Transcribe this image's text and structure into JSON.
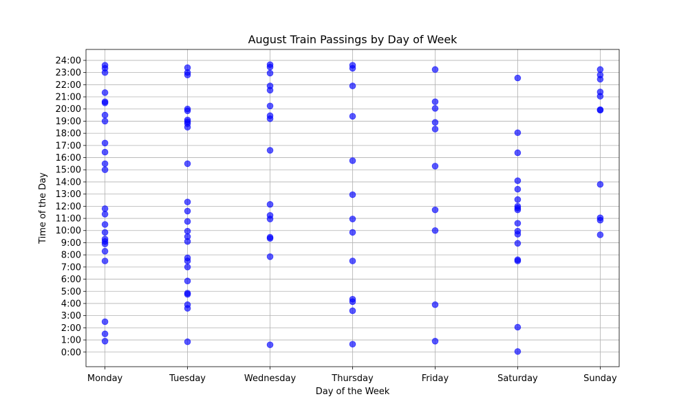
{
  "chart_data": {
    "type": "scatter",
    "title": "August Train Passings by Day of Week",
    "xlabel": "Day of the Week",
    "ylabel": "Time of the Day",
    "categories": [
      "Monday",
      "Tuesday",
      "Wednesday",
      "Thursday",
      "Friday",
      "Saturday",
      "Sunday"
    ],
    "yticks": [
      "0:00",
      "1:00",
      "2:00",
      "3:00",
      "4:00",
      "5:00",
      "6:00",
      "7:00",
      "8:00",
      "9:00",
      "10:00",
      "11:00",
      "12:00",
      "13:00",
      "14:00",
      "15:00",
      "16:00",
      "17:00",
      "18:00",
      "19:00",
      "20:00",
      "21:00",
      "22:00",
      "23:00",
      "24:00"
    ],
    "ylim": [
      -1.2,
      24.9
    ],
    "grid": true,
    "marker_color": "#0000ff",
    "marker_alpha": 0.65,
    "series": [
      {
        "points": [
          {
            "x": "Monday",
            "y": 23.6
          },
          {
            "x": "Monday",
            "y": 23.35
          },
          {
            "x": "Monday",
            "y": 23.0
          },
          {
            "x": "Monday",
            "y": 21.35
          },
          {
            "x": "Monday",
            "y": 20.6
          },
          {
            "x": "Monday",
            "y": 20.5
          },
          {
            "x": "Monday",
            "y": 19.5
          },
          {
            "x": "Monday",
            "y": 19.0
          },
          {
            "x": "Monday",
            "y": 17.2
          },
          {
            "x": "Monday",
            "y": 16.45
          },
          {
            "x": "Monday",
            "y": 15.5
          },
          {
            "x": "Monday",
            "y": 15.0
          },
          {
            "x": "Monday",
            "y": 11.8
          },
          {
            "x": "Monday",
            "y": 11.35
          },
          {
            "x": "Monday",
            "y": 10.5
          },
          {
            "x": "Monday",
            "y": 9.85
          },
          {
            "x": "Monday",
            "y": 9.3
          },
          {
            "x": "Monday",
            "y": 9.1
          },
          {
            "x": "Monday",
            "y": 8.9
          },
          {
            "x": "Monday",
            "y": 8.3
          },
          {
            "x": "Monday",
            "y": 7.5
          },
          {
            "x": "Monday",
            "y": 2.5
          },
          {
            "x": "Monday",
            "y": 1.5
          },
          {
            "x": "Monday",
            "y": 0.9
          },
          {
            "x": "Tuesday",
            "y": 23.4
          },
          {
            "x": "Tuesday",
            "y": 23.0
          },
          {
            "x": "Tuesday",
            "y": 22.8
          },
          {
            "x": "Tuesday",
            "y": 20.0
          },
          {
            "x": "Tuesday",
            "y": 19.85
          },
          {
            "x": "Tuesday",
            "y": 19.1
          },
          {
            "x": "Tuesday",
            "y": 18.95
          },
          {
            "x": "Tuesday",
            "y": 18.8
          },
          {
            "x": "Tuesday",
            "y": 18.5
          },
          {
            "x": "Tuesday",
            "y": 15.5
          },
          {
            "x": "Tuesday",
            "y": 12.35
          },
          {
            "x": "Tuesday",
            "y": 11.6
          },
          {
            "x": "Tuesday",
            "y": 10.75
          },
          {
            "x": "Tuesday",
            "y": 9.95
          },
          {
            "x": "Tuesday",
            "y": 9.5
          },
          {
            "x": "Tuesday",
            "y": 9.1
          },
          {
            "x": "Tuesday",
            "y": 7.75
          },
          {
            "x": "Tuesday",
            "y": 7.5
          },
          {
            "x": "Tuesday",
            "y": 7.0
          },
          {
            "x": "Tuesday",
            "y": 5.85
          },
          {
            "x": "Tuesday",
            "y": 4.85
          },
          {
            "x": "Tuesday",
            "y": 4.75
          },
          {
            "x": "Tuesday",
            "y": 3.9
          },
          {
            "x": "Tuesday",
            "y": 3.6
          },
          {
            "x": "Tuesday",
            "y": 0.85
          },
          {
            "x": "Wednesday",
            "y": 23.65
          },
          {
            "x": "Wednesday",
            "y": 23.45
          },
          {
            "x": "Wednesday",
            "y": 22.95
          },
          {
            "x": "Wednesday",
            "y": 21.9
          },
          {
            "x": "Wednesday",
            "y": 21.55
          },
          {
            "x": "Wednesday",
            "y": 20.25
          },
          {
            "x": "Wednesday",
            "y": 19.45
          },
          {
            "x": "Wednesday",
            "y": 19.2
          },
          {
            "x": "Wednesday",
            "y": 16.6
          },
          {
            "x": "Wednesday",
            "y": 12.15
          },
          {
            "x": "Wednesday",
            "y": 11.25
          },
          {
            "x": "Wednesday",
            "y": 10.95
          },
          {
            "x": "Wednesday",
            "y": 9.45
          },
          {
            "x": "Wednesday",
            "y": 9.35
          },
          {
            "x": "Wednesday",
            "y": 7.85
          },
          {
            "x": "Wednesday",
            "y": 0.6
          },
          {
            "x": "Thursday",
            "y": 23.6
          },
          {
            "x": "Thursday",
            "y": 23.35
          },
          {
            "x": "Thursday",
            "y": 21.9
          },
          {
            "x": "Thursday",
            "y": 19.4
          },
          {
            "x": "Thursday",
            "y": 15.75
          },
          {
            "x": "Thursday",
            "y": 12.95
          },
          {
            "x": "Thursday",
            "y": 10.95
          },
          {
            "x": "Thursday",
            "y": 9.85
          },
          {
            "x": "Thursday",
            "y": 7.5
          },
          {
            "x": "Thursday",
            "y": 4.35
          },
          {
            "x": "Thursday",
            "y": 4.15
          },
          {
            "x": "Thursday",
            "y": 3.4
          },
          {
            "x": "Thursday",
            "y": 0.65
          },
          {
            "x": "Friday",
            "y": 23.25
          },
          {
            "x": "Friday",
            "y": 20.6
          },
          {
            "x": "Friday",
            "y": 20.05
          },
          {
            "x": "Friday",
            "y": 18.9
          },
          {
            "x": "Friday",
            "y": 18.35
          },
          {
            "x": "Friday",
            "y": 15.3
          },
          {
            "x": "Friday",
            "y": 11.7
          },
          {
            "x": "Friday",
            "y": 10.0
          },
          {
            "x": "Friday",
            "y": 3.9
          },
          {
            "x": "Friday",
            "y": 0.9
          },
          {
            "x": "Saturday",
            "y": 22.55
          },
          {
            "x": "Saturday",
            "y": 18.05
          },
          {
            "x": "Saturday",
            "y": 16.4
          },
          {
            "x": "Saturday",
            "y": 14.1
          },
          {
            "x": "Saturday",
            "y": 13.4
          },
          {
            "x": "Saturday",
            "y": 12.55
          },
          {
            "x": "Saturday",
            "y": 12.0
          },
          {
            "x": "Saturday",
            "y": 11.85
          },
          {
            "x": "Saturday",
            "y": 11.7
          },
          {
            "x": "Saturday",
            "y": 10.6
          },
          {
            "x": "Saturday",
            "y": 9.95
          },
          {
            "x": "Saturday",
            "y": 9.7
          },
          {
            "x": "Saturday",
            "y": 8.95
          },
          {
            "x": "Saturday",
            "y": 7.6
          },
          {
            "x": "Saturday",
            "y": 7.5
          },
          {
            "x": "Saturday",
            "y": 2.05
          },
          {
            "x": "Saturday",
            "y": 0.05
          },
          {
            "x": "Sunday",
            "y": 23.25
          },
          {
            "x": "Sunday",
            "y": 22.8
          },
          {
            "x": "Sunday",
            "y": 22.45
          },
          {
            "x": "Sunday",
            "y": 21.4
          },
          {
            "x": "Sunday",
            "y": 21.05
          },
          {
            "x": "Sunday",
            "y": 19.95
          },
          {
            "x": "Sunday",
            "y": 19.9
          },
          {
            "x": "Sunday",
            "y": 13.8
          },
          {
            "x": "Sunday",
            "y": 11.05
          },
          {
            "x": "Sunday",
            "y": 10.85
          },
          {
            "x": "Sunday",
            "y": 9.65
          }
        ]
      }
    ]
  }
}
